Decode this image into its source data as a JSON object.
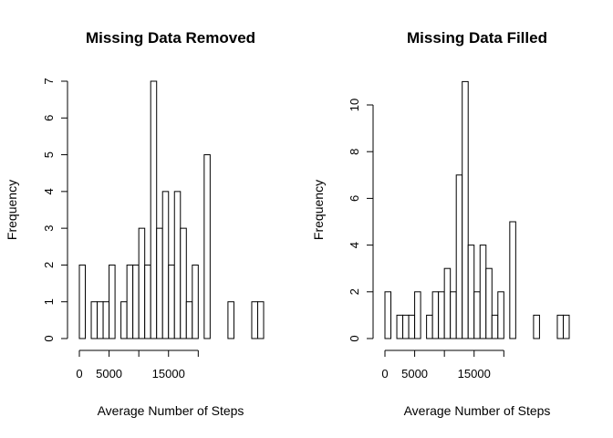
{
  "chart_data": [
    {
      "type": "histogram",
      "title": "Missing Data Removed",
      "xlabel": "Average Number of Steps",
      "ylabel": "Frequency",
      "bin_width": 1000,
      "bin_start": 0,
      "xticks": [
        0,
        5000,
        15000
      ],
      "xtick_labels": [
        "0",
        "5000",
        "15000"
      ],
      "xaxis_range": [
        0,
        20000
      ],
      "yticks": [
        0,
        1,
        2,
        3,
        4,
        5,
        6,
        7
      ],
      "ylim": [
        0,
        7
      ],
      "counts": [
        2,
        0,
        1,
        1,
        1,
        2,
        0,
        1,
        2,
        2,
        3,
        2,
        7,
        3,
        4,
        2,
        4,
        3,
        1,
        2,
        0,
        5,
        0,
        0,
        0,
        1,
        0,
        0,
        0,
        1,
        1
      ],
      "grid": false,
      "fill": "#ffffff",
      "edge_color": "#000000"
    },
    {
      "type": "histogram",
      "title": "Missing Data Filled",
      "xlabel": "Average Number of Steps",
      "ylabel": "Frequency",
      "bin_width": 1000,
      "bin_start": 0,
      "xticks": [
        0,
        5000,
        15000
      ],
      "xtick_labels": [
        "0",
        "5000",
        "15000"
      ],
      "xaxis_range": [
        0,
        20000
      ],
      "yticks": [
        0,
        2,
        4,
        6,
        8,
        10
      ],
      "ylim": [
        0,
        11
      ],
      "counts": [
        2,
        0,
        1,
        1,
        1,
        2,
        0,
        1,
        2,
        2,
        3,
        2,
        7,
        11,
        4,
        2,
        4,
        3,
        1,
        2,
        0,
        5,
        0,
        0,
        0,
        1,
        0,
        0,
        0,
        1,
        1
      ],
      "grid": false,
      "fill": "#ffffff",
      "edge_color": "#000000"
    }
  ]
}
